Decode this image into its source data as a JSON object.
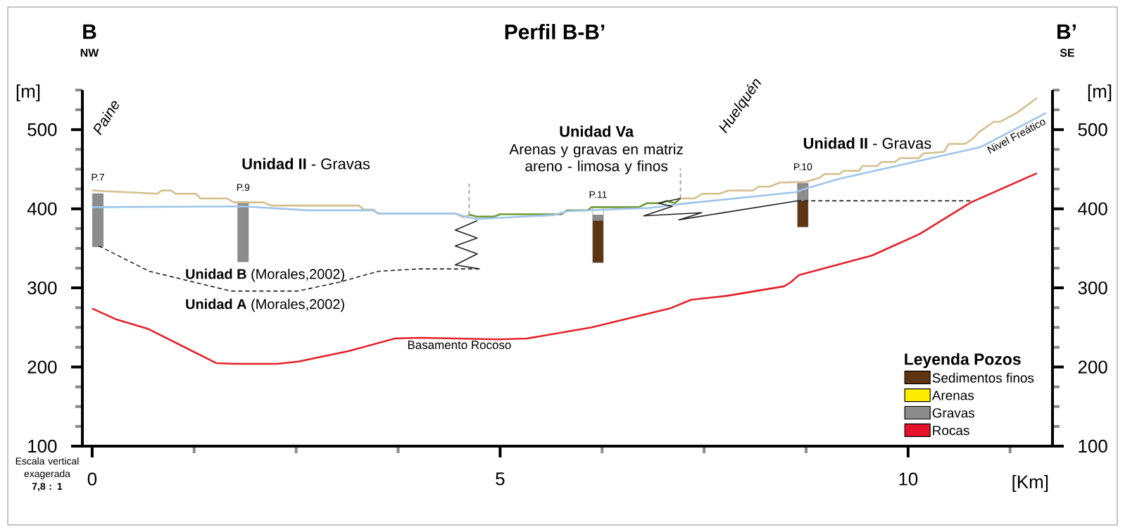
{
  "chart_data": {
    "type": "line",
    "title": "Perfil B-B’",
    "xlabel": "[Km]",
    "ylabel": "[m]",
    "y2label": "[m]",
    "legend_title": "Leyenda Pozos",
    "legend": "bottom right",
    "xlim": [
      -0.12,
      11.77
    ],
    "ylim": [
      100,
      550
    ],
    "y2lim": [
      100,
      550
    ],
    "xticks": [
      0,
      {
        "value": 1.25,
        "label": null
      },
      {
        "value": 2.5,
        "label": null
      },
      {
        "value": 3.75,
        "label": null
      },
      5,
      {
        "value": 6.25,
        "label": null
      },
      {
        "value": 7.5,
        "label": null
      },
      {
        "value": 8.75,
        "label": null
      },
      10,
      {
        "value": 11.25,
        "label": null
      }
    ],
    "yticks": [
      100,
      {
        "value": 125,
        "label": null
      },
      {
        "value": 150,
        "label": null
      },
      {
        "value": 175,
        "label": null
      },
      200,
      {
        "value": 225,
        "label": null
      },
      {
        "value": 250,
        "label": null
      },
      {
        "value": 275,
        "label": null
      },
      300,
      {
        "value": 325,
        "label": null
      },
      {
        "value": 350,
        "label": null
      },
      {
        "value": 375,
        "label": null
      },
      400,
      {
        "value": 425,
        "label": null
      },
      {
        "value": 450,
        "label": null
      },
      {
        "value": 475,
        "label": null
      },
      500,
      {
        "value": 525,
        "label": null
      },
      {
        "value": 550,
        "label": null
      }
    ],
    "y2ticks": [
      100,
      {
        "value": 125,
        "label": null
      },
      {
        "value": 150,
        "label": null
      },
      {
        "value": 175,
        "label": null
      },
      200,
      {
        "value": 225,
        "label": null
      },
      {
        "value": 250,
        "label": null
      },
      {
        "value": 275,
        "label": null
      },
      300,
      {
        "value": 325,
        "label": null
      },
      {
        "value": 350,
        "label": null
      },
      {
        "value": 375,
        "label": null
      },
      400,
      {
        "value": 425,
        "label": null
      },
      {
        "value": 450,
        "label": null
      },
      {
        "value": 475,
        "label": null
      },
      500,
      {
        "value": 525,
        "label": null
      },
      {
        "value": 550,
        "label": null
      }
    ],
    "series": [
      {
        "color": "#d4bf8f",
        "x": [
          0,
          0.8,
          0.85,
          0.97,
          1.02,
          1.27,
          1.33,
          1.65,
          1.74,
          2.1,
          2.2,
          3.27,
          3.33,
          3.45,
          3.5,
          4.45,
          4.55,
          4.62,
          5.9,
          7.21,
          7.38,
          7.48,
          7.69,
          7.8,
          8.1,
          8.17,
          8.3,
          8.43,
          8.75,
          8.91,
          8.98,
          9.16,
          9.21,
          9.4,
          9.44,
          9.62,
          9.67,
          9.84,
          9.9,
          10.13,
          10.19,
          10.44,
          10.5,
          10.7,
          10.81,
          10.87,
          11.05,
          11.13,
          11.33,
          11.58
        ],
        "values": [
          423,
          419,
          423,
          423,
          419,
          419,
          413,
          413,
          408,
          408,
          404,
          404,
          399,
          399,
          394,
          394,
          389,
          392,
          null,
          413,
          413,
          419,
          419,
          423,
          423,
          428,
          428,
          433,
          434,
          439,
          444,
          444,
          448,
          448,
          454,
          454,
          459,
          459,
          464,
          464,
          470,
          472,
          482,
          482,
          490,
          497,
          510,
          510,
          521,
          540
        ]
      },
      {
        "color": "#6f9a35",
        "x": [
          4.62,
          4.65,
          4.72,
          4.92,
          5.0,
          5.75,
          5.82,
          6.07,
          6.12,
          6.7,
          6.8,
          6.96,
          7.04,
          7.14,
          7.21
        ],
        "values": [
          392,
          392,
          390,
          390,
          393,
          393,
          398,
          398,
          402,
          402,
          407,
          407,
          410,
          407,
          413
        ]
      },
      {
        "name": "Nivel Freático",
        "color": "#9ec5ea",
        "x": [
          0,
          1.85,
          2.65,
          3.45,
          3.5,
          4.45,
          4.58,
          4.72,
          5.65,
          5.83,
          6.84,
          7.21,
          8.63,
          8.73,
          9.16,
          10.89,
          11.69
        ],
        "values": [
          402,
          403,
          398,
          398,
          394,
          394,
          390,
          387,
          392,
          397,
          401,
          406,
          421,
          425,
          438,
          478,
          521
        ]
      },
      {
        "name": "Basamento Rocoso",
        "color": "#e4222b",
        "x": [
          0,
          0.3,
          0.69,
          1.52,
          1.74,
          2.27,
          2.53,
          3.14,
          3.71,
          4.02,
          4.98,
          5.33,
          6.12,
          7.08,
          7.34,
          7.78,
          8.48,
          8.56,
          8.66,
          9.56,
          10.14,
          10.77,
          11.58
        ],
        "values": [
          274,
          260,
          248,
          205,
          204,
          204,
          207,
          220,
          236,
          237,
          235,
          236,
          250,
          274,
          285,
          290,
          302,
          307,
          316,
          341,
          368,
          408,
          445
        ]
      },
      {
        "color": "#222222",
        "line_style": "dashed",
        "x": [
          0.08,
          0.14,
          0.7,
          1.7,
          2.52,
          3.02,
          3.51,
          4.0,
          4.76
        ],
        "values": [
          353,
          350,
          321,
          296,
          296,
          307,
          321,
          324,
          324
        ]
      },
      {
        "color": "#222222",
        "x": [
          4.72,
          4.45,
          4.72,
          4.45,
          4.72,
          4.45,
          4.75
        ],
        "values": [
          385,
          373,
          363,
          353,
          343,
          329,
          324
        ]
      },
      {
        "color": "#222222",
        "x": [
          7.21,
          6.94,
          7.11,
          6.76,
          7.47,
          7.19,
          8.64
        ],
        "values": [
          413,
          407,
          403,
          391,
          395,
          386,
          410
        ]
      },
      {
        "color": "#222222",
        "line_style": "dashed",
        "x": [
          8.64,
          10.77
        ],
        "values": [
          410,
          410
        ]
      },
      {
        "color": "#9a9a9a",
        "line_style": "dashed",
        "x": [
          4.62,
          4.62
        ],
        "values": [
          392,
          432
        ]
      },
      {
        "color": "#9a9a9a",
        "line_style": "dashed",
        "x": [
          7.21,
          7.21
        ],
        "values": [
          413,
          451
        ]
      },
      {
        "type": "bar",
        "name": "Sedimentos finos",
        "color": "#5e3512",
        "x": [
          6.2,
          8.71
        ],
        "base": [
          332,
          377
        ],
        "values": [
          53,
          33
        ]
      },
      {
        "type": "bar",
        "name": "Arenas",
        "color": "#ffed00"
      },
      {
        "type": "bar",
        "name": "Gravas",
        "color": "#8c8c8c",
        "x": [
          0.07,
          1.85,
          6.2,
          8.71
        ],
        "base": [
          352,
          333,
          385,
          410
        ],
        "values": [
          67,
          76,
          7,
          22
        ]
      },
      {
        "type": "bar",
        "color": "#ffffff",
        "x": [
          6.2
        ],
        "base": [
          392
        ],
        "values": [
          10
        ]
      },
      {
        "type": "bar",
        "name": "Rocas",
        "color": "#e8112d"
      }
    ],
    "annotations": [
      "B",
      "NW",
      "B’",
      "SE",
      "Escala vertical exagerada **7,8 : 1**",
      "Paine",
      "Huelquén",
      "**Unidad II** - Gravas",
      "**Unidad II** - Gravas",
      "Unidad Va",
      "Arenas y gravas en matriz areno - limosa y finos",
      "**Unidad B** (Morales,2002)",
      "**Unidad A** (Morales,2002)",
      "P.7",
      "P.9",
      "P.11",
      "P.10"
    ]
  }
}
